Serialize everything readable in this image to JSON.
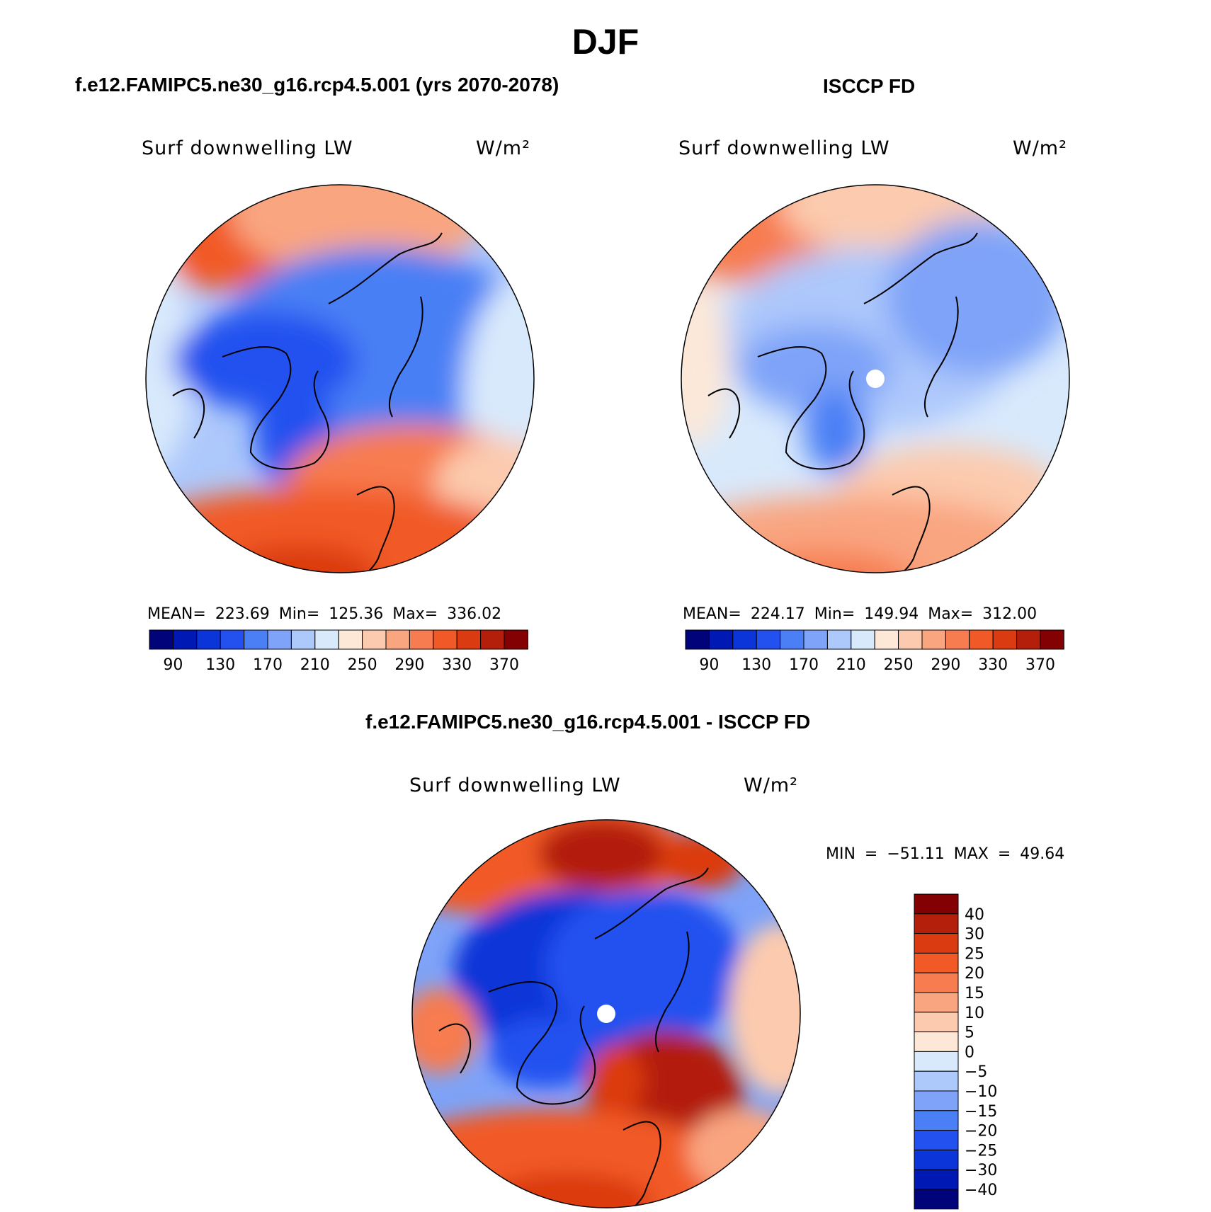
{
  "figure_title": "DJF",
  "panels": [
    {
      "id": "model",
      "title": "f.e12.FAMIPC5.ne30_g16.rcp4.5.001 (yrs 2070-2078)",
      "variable": "Surf downwelling LW",
      "units": "W/m²",
      "stats": "MEAN= 223.69   Min= 125.36   Max= 336.02"
    },
    {
      "id": "obs",
      "title": "ISCCP FD",
      "variable": "Surf downwelling LW",
      "units": "W/m²",
      "stats": "MEAN= 224.17   Min= 149.94   Max= 312.00"
    },
    {
      "id": "diff",
      "title": "f.e12.FAMIPC5.ne30_g16.rcp4.5.001 - ISCCP FD",
      "variable": "Surf downwelling LW",
      "units": "W/m²",
      "stats": "MIN = −51.11 MAX =   49.64"
    }
  ],
  "colorbar_abs": {
    "colors": [
      "#00037a",
      "#0019b4",
      "#0b35d8",
      "#2251ef",
      "#4a7ff5",
      "#7ea3f8",
      "#adc8fb",
      "#d8e9fc",
      "#fde8d8",
      "#fccaae",
      "#f9a580",
      "#f77c50",
      "#f15a26",
      "#db3b10",
      "#b31f0a",
      "#830103"
    ],
    "labels": [
      "90",
      "130",
      "170",
      "210",
      "250",
      "290",
      "330",
      "370"
    ]
  },
  "colorbar_diff": {
    "colors": [
      "#830103",
      "#b31f0a",
      "#db3b10",
      "#f15a26",
      "#f77c50",
      "#f9a580",
      "#fccaae",
      "#fde8d8",
      "#d8e9fc",
      "#adc8fb",
      "#7ea3f8",
      "#4a7ff5",
      "#2251ef",
      "#0b35d8",
      "#0019b4",
      "#00037a"
    ],
    "labels": [
      "40",
      "30",
      "25",
      "20",
      "15",
      "10",
      "5",
      "0",
      "−5",
      "−10",
      "−15",
      "−20",
      "−25",
      "−30",
      "−40"
    ]
  },
  "chart_data": [
    {
      "type": "heatmap",
      "title": "f.e12.FAMIPC5.ne30_g16.rcp4.5.001 (yrs 2070-2078)",
      "variable": "Surf downwelling LW",
      "units": "W/m²",
      "projection": "north polar stereographic",
      "mean": 223.69,
      "min": 125.36,
      "max": 336.02,
      "contour_levels": [
        90,
        130,
        170,
        210,
        250,
        290,
        330,
        370
      ]
    },
    {
      "type": "heatmap",
      "title": "ISCCP FD",
      "variable": "Surf downwelling LW",
      "units": "W/m²",
      "projection": "north polar stereographic",
      "mean": 224.17,
      "min": 149.94,
      "max": 312.0,
      "contour_levels": [
        90,
        130,
        170,
        210,
        250,
        290,
        330,
        370
      ]
    },
    {
      "type": "heatmap",
      "title": "f.e12.FAMIPC5.ne30_g16.rcp4.5.001 - ISCCP FD",
      "variable": "Surf downwelling LW",
      "units": "W/m²",
      "projection": "north polar stereographic",
      "min": -51.11,
      "max": 49.64,
      "contour_levels": [
        -40,
        -30,
        -25,
        -20,
        -15,
        -10,
        -5,
        0,
        5,
        10,
        15,
        20,
        25,
        30,
        40
      ]
    }
  ]
}
